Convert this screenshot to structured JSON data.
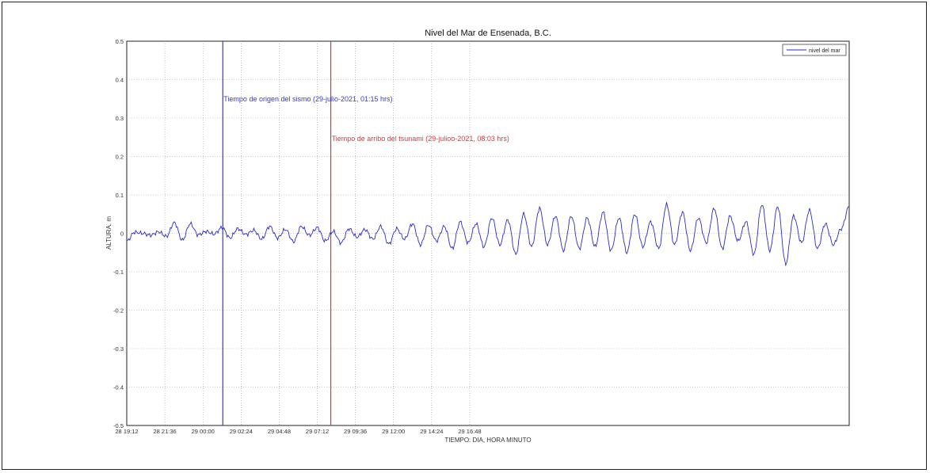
{
  "chart_data": {
    "type": "line",
    "title": "Nivel del Mar de Ensenada, B.C.",
    "xlabel": "TIEMPO: DIA, HORA MINUTO",
    "ylabel": "ALTURA, m",
    "ylim": [
      -0.5,
      0.5
    ],
    "xlim_hours": [
      0,
      45.5
    ],
    "grid": true,
    "legend_position": "top-right",
    "x_tick_labels": [
      "28 19:12",
      "28 21:36",
      "29 00:00",
      "29 02:24",
      "29 04:48",
      "29 07:12",
      "29 09:36",
      "29 12:00",
      "29 14:24",
      "29 16:48"
    ],
    "y_tick_labels": [
      "0.5",
      "0.4",
      "0.3",
      "0.2",
      "0.1",
      "0",
      "-0.1",
      "-0.2",
      "-0.3",
      "-0.4",
      "-0.5"
    ],
    "series": [
      {
        "name": "nivel del mar",
        "color": "#2a2acc",
        "x_hours": [
          0,
          0.5,
          1,
          1.5,
          2,
          2.5,
          3,
          3.5,
          4,
          4.5,
          5,
          5.5,
          6,
          6.5,
          7,
          7.5,
          8,
          8.5,
          9,
          9.5,
          10,
          10.5,
          11,
          11.5,
          12,
          12.5,
          13,
          13.5,
          14,
          14.5,
          15,
          15.5,
          16,
          16.5,
          17,
          17.5,
          18,
          18.5,
          19,
          19.5,
          20,
          20.5,
          21,
          21.5,
          22,
          22.5,
          23,
          23.5,
          24,
          24.5,
          25,
          25.5,
          26,
          26.5,
          27,
          27.5,
          28,
          28.5,
          29,
          29.5,
          30,
          30.5,
          31,
          31.5,
          32,
          32.5,
          33,
          33.5,
          34,
          34.5,
          35,
          35.5,
          36,
          36.5,
          37,
          37.5,
          38,
          38.5,
          39,
          39.5,
          40,
          40.5,
          41,
          41.5,
          42,
          42.5,
          43,
          43.5,
          44,
          44.5,
          45,
          45.5
        ],
        "values": [
          -0.02,
          0.003,
          0.0,
          -0.005,
          0.004,
          -0.008,
          0.028,
          -0.018,
          0.025,
          -0.004,
          0.005,
          -0.002,
          0.015,
          -0.012,
          0.012,
          -0.003,
          0.008,
          -0.015,
          0.018,
          -0.012,
          0.01,
          -0.022,
          0.018,
          -0.005,
          0.015,
          -0.02,
          0.005,
          -0.025,
          0.012,
          -0.01,
          0.01,
          -0.015,
          0.018,
          -0.028,
          0.012,
          -0.015,
          0.025,
          -0.03,
          0.022,
          -0.02,
          0.018,
          -0.04,
          0.03,
          -0.025,
          0.025,
          -0.035,
          0.04,
          -0.03,
          0.035,
          -0.055,
          0.05,
          -0.035,
          0.065,
          -0.03,
          0.045,
          -0.045,
          0.045,
          -0.04,
          0.04,
          -0.035,
          0.055,
          -0.045,
          0.04,
          -0.05,
          0.05,
          -0.035,
          0.03,
          -0.04,
          0.075,
          -0.03,
          0.055,
          -0.045,
          0.04,
          -0.025,
          0.065,
          -0.04,
          0.045,
          -0.02,
          0.03,
          -0.055,
          0.075,
          -0.045,
          0.07,
          -0.08,
          0.045,
          -0.025,
          0.06,
          -0.04,
          0.025,
          -0.03,
          0.012,
          0.07
        ]
      }
    ],
    "annotations": [
      {
        "label": "Tiempo de origen del sismo (29-julio-2021, 01:15 hrs)",
        "x_hours": 6.05,
        "color": "#3a3acc"
      },
      {
        "label": "Tiempo de arribo del tsunami (29-julioo-2021, 08:03 hrs)",
        "x_hours": 12.85,
        "color": "#d63a3a"
      }
    ]
  }
}
